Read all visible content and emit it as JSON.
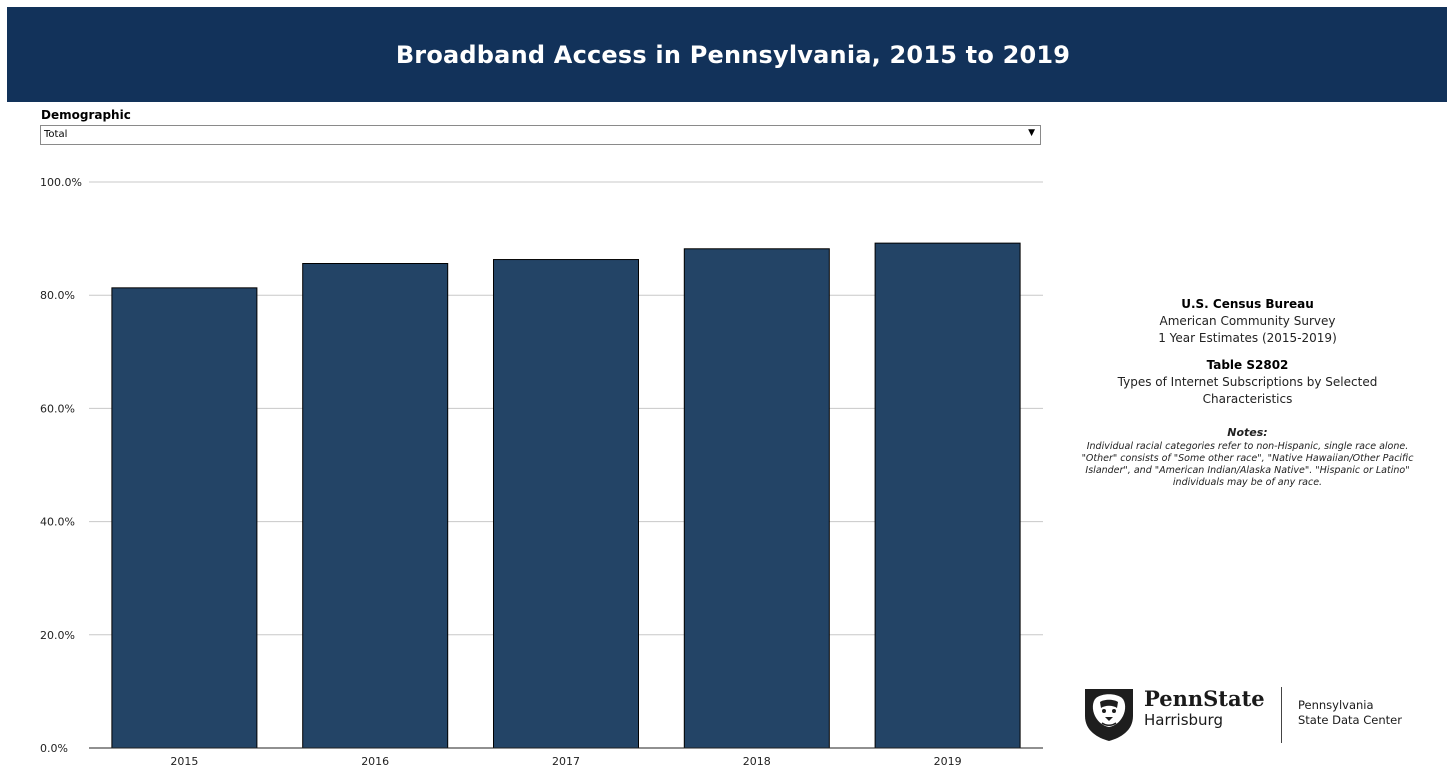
{
  "header": {
    "title": "Broadband Access in Pennsylvania, 2015 to 2019"
  },
  "filter": {
    "label": "Demographic",
    "selected": "Total"
  },
  "colors": {
    "header_bg": "#12325a",
    "bar_fill": "#234466"
  },
  "source": {
    "agency": "U.S. Census Bureau",
    "survey": "American Community Survey",
    "estimates": "1 Year Estimates (2015-2019)",
    "table_id": "Table S2802",
    "table_name": "Types of Internet Subscriptions by Selected Characteristics",
    "notes_title": "Notes:",
    "notes_text": "Individual racial categories refer to non-Hispanic, single race alone. \"Other\" consists of \"Some other race\", \"Native Hawaiian/Other Pacific Islander\", and \"American Indian/Alaska Native\". \"Hispanic or Latino\" individuals may be of any race."
  },
  "logo": {
    "university": "PennState",
    "campus": "Harrisburg",
    "center_line1": "Pennsylvania",
    "center_line2": "State Data Center",
    "icon": "nittany-lion-shield-icon"
  },
  "chart_data": {
    "type": "bar",
    "title": "",
    "xlabel": "",
    "ylabel": "",
    "categories": [
      "2015",
      "2016",
      "2017",
      "2018",
      "2019"
    ],
    "values": [
      81.3,
      85.6,
      86.3,
      88.2,
      89.2
    ],
    "ylim": [
      0,
      100
    ],
    "yticks": [
      "0.0%",
      "20.0%",
      "40.0%",
      "60.0%",
      "80.0%",
      "100.0%"
    ],
    "ytick_values": [
      0,
      20,
      40,
      60,
      80,
      100
    ],
    "grid": true,
    "legend": "none"
  }
}
